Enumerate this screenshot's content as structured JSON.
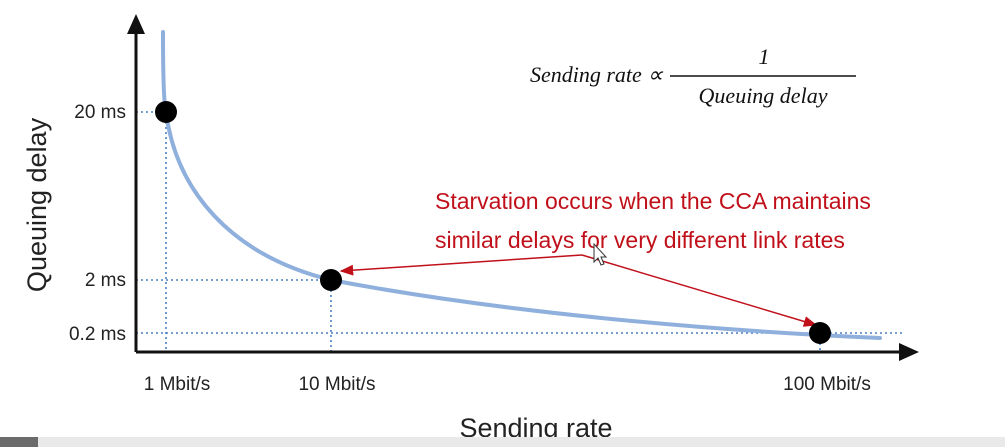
{
  "chart_data": {
    "type": "line",
    "title": "",
    "xlabel": "Sending rate",
    "ylabel": "Queuing delay",
    "x_ticks": [
      "1 Mbit/s",
      "10 Mbit/s",
      "100 Mbit/s"
    ],
    "y_ticks": [
      "20 ms",
      "2 ms",
      "0.2 ms"
    ],
    "x_scale": "log",
    "y_scale": "inverse",
    "grid": false,
    "series": [
      {
        "points": [
          {
            "x": 1,
            "y": 20
          },
          {
            "x": 10,
            "y": 2
          },
          {
            "x": 100,
            "y": 0.2
          }
        ],
        "color": "#8fb0dc"
      }
    ],
    "highlighted_points": [
      {
        "x": 1,
        "y": 20
      },
      {
        "x": 10,
        "y": 2
      },
      {
        "x": 100,
        "y": 0.2
      }
    ],
    "formula": {
      "lhs": "Sending rate ∝",
      "numerator": "1",
      "denominator": "Queuing delay"
    },
    "annotation": {
      "lines": [
        "Starvation occurs when the CCA maintains",
        "similar delays for very different link rates"
      ],
      "color": "#c0101a"
    }
  },
  "colors": {
    "curve": "#8fb0dc",
    "guide": "#4a7fc4",
    "axis": "#111111",
    "point": "#000000",
    "annotation": "#c0101a"
  }
}
